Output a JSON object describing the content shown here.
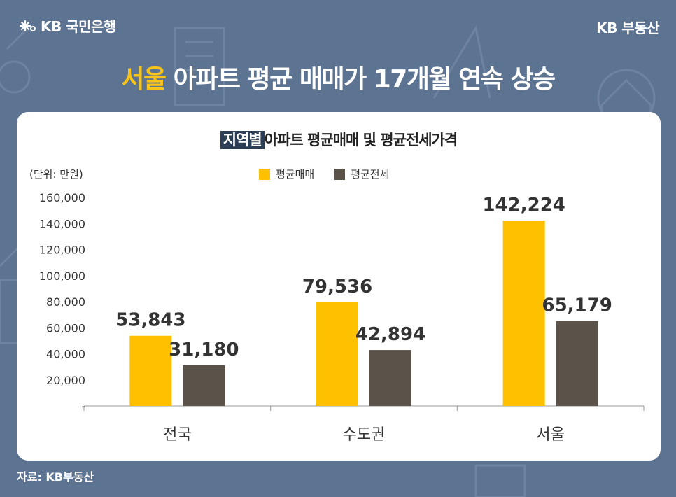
{
  "brand": {
    "left": "KB 국민은행",
    "right": "KB 부동산"
  },
  "headline": {
    "highlight": "서울",
    "rest": " 아파트 평균 매매가 17개월 연속 상승"
  },
  "card": {
    "title_tag": "지역별",
    "title_rest": "아파트 평균매매 및 평균전세가격",
    "unit": "(단위: 만원)"
  },
  "source": "자료: KB부동산",
  "colors": {
    "background": "#5d7392",
    "accent": "#f7c41a",
    "sale": "#ffc000",
    "jeonse": "#5b5249"
  },
  "chart_data": {
    "type": "bar",
    "title": "지역별아파트 평균매매 및 평균전세가격",
    "ylabel": "(단위: 만원)",
    "categories": [
      "전국",
      "수도권",
      "서울"
    ],
    "series": [
      {
        "name": "평균매매",
        "values": [
          53843,
          79536,
          142224
        ],
        "labels": [
          "53,843",
          "79,536",
          "142,224"
        ]
      },
      {
        "name": "평균전세",
        "values": [
          31180,
          42894,
          65179
        ],
        "labels": [
          "31,180",
          "42,894",
          "65,179"
        ]
      }
    ],
    "ylim": [
      0,
      160000
    ],
    "yticks": [
      "-",
      "20,000",
      "40,000",
      "60,000",
      "80,000",
      "100,000",
      "120,000",
      "140,000",
      "160,000"
    ],
    "grid": false,
    "legend": "top-center"
  }
}
